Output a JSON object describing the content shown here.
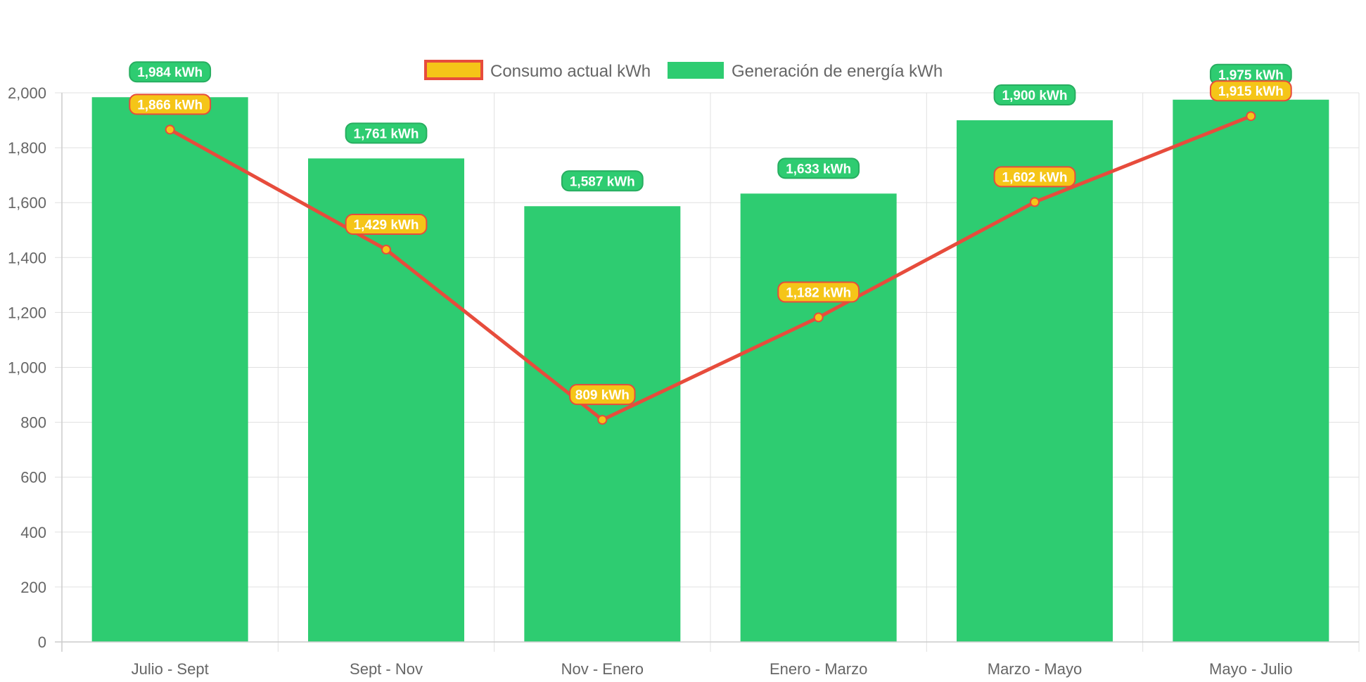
{
  "chart_data": {
    "type": "bar",
    "categories": [
      "Julio - Sept",
      "Sept - Nov",
      "Nov - Enero",
      "Enero - Marzo",
      "Marzo - Mayo",
      "Mayo - Julio"
    ],
    "series": [
      {
        "name": "Consumo actual kWh",
        "type": "line",
        "values": [
          1866,
          1429,
          809,
          1182,
          1602,
          1915
        ],
        "labels": [
          "1,866 kWh",
          "1,429 kWh",
          "809 kWh",
          "1,182 kWh",
          "1,602 kWh",
          "1,915 kWh"
        ],
        "line_color": "#e74c3c",
        "point_color": "#f5c518"
      },
      {
        "name": "Generación de energía kWh",
        "type": "bar",
        "values": [
          1984,
          1761,
          1587,
          1633,
          1900,
          1975
        ],
        "labels": [
          "1,984 kWh",
          "1,761 kWh",
          "1,587 kWh",
          "1,633 kWh",
          "1,900 kWh",
          "1,975 kWh"
        ],
        "color": "#2ecc71",
        "label_border": "#27ae60"
      }
    ],
    "ylim": [
      0,
      2000
    ],
    "yticks": [
      0,
      200,
      400,
      600,
      800,
      1000,
      1200,
      1400,
      1600,
      1800,
      2000
    ],
    "ytick_labels": [
      "0",
      "200",
      "400",
      "600",
      "800",
      "1,000",
      "1,200",
      "1,400",
      "1,600",
      "1,800",
      "2,000"
    ],
    "grid": true,
    "legend_position": "top"
  }
}
